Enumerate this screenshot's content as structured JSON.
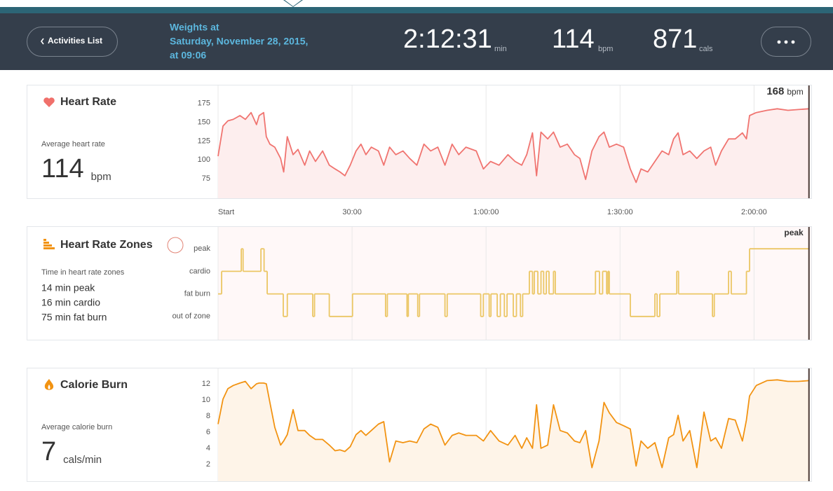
{
  "header": {
    "back_button": "Activities List",
    "title_lines": [
      "Weights at",
      "Saturday, November 28, 2015,",
      "at 09:06"
    ],
    "stats": [
      {
        "value": "2:12:31",
        "unit": "min"
      },
      {
        "value": 114,
        "unit": "bpm"
      },
      {
        "value": 871,
        "unit": "cals"
      }
    ]
  },
  "chart_data": [
    {
      "type": "area",
      "title": "Heart Rate",
      "summary_label": "Average heart rate",
      "summary_value": 114,
      "summary_unit": "bpm",
      "cursor_value": 168,
      "cursor_unit": "bpm",
      "color": "#f07470",
      "fill": "#fdeeee",
      "xlim": [
        0,
        132.5
      ],
      "ylim": [
        50,
        200
      ],
      "yticks": [
        75,
        100,
        125,
        150,
        175
      ],
      "xticks": [
        {
          "value": 0,
          "label": "Start"
        },
        {
          "value": 30,
          "label": "30:00"
        },
        {
          "value": 60,
          "label": "1:00:00"
        },
        {
          "value": 90,
          "label": "1:30:00"
        },
        {
          "value": 120,
          "label": "2:00:00"
        }
      ],
      "grid": true,
      "x": [
        0,
        1.1,
        2.2,
        3.4,
        4.9,
        6.1,
        7.4,
        8.6,
        9.2,
        10.2,
        10.8,
        11.6,
        12.7,
        14.0,
        14.7,
        15.5,
        16.8,
        17.9,
        19.4,
        20.5,
        21.8,
        23.4,
        24.9,
        26.2,
        27.3,
        28.4,
        29.6,
        30.9,
        32.0,
        33.1,
        34.3,
        35.9,
        37.1,
        38.4,
        39.8,
        41.4,
        42.9,
        44.5,
        46.1,
        47.6,
        49.2,
        50.8,
        52.4,
        53.9,
        55.5,
        57.8,
        59.4,
        61.0,
        62.9,
        64.9,
        66.5,
        68.0,
        69.1,
        70.4,
        71.3,
        72.3,
        73.8,
        75.1,
        76.6,
        78.2,
        79.8,
        81.0,
        82.3,
        83.7,
        85.3,
        86.4,
        87.6,
        89.2,
        90.8,
        92.3,
        93.6,
        94.7,
        96.2,
        97.8,
        99.4,
        100.9,
        102.0,
        103.0,
        104.1,
        105.6,
        107.2,
        108.8,
        110.3,
        111.4,
        112.7,
        114.3,
        115.8,
        117.4,
        118.3,
        119.0,
        120.5,
        122.9,
        125.2,
        127.6,
        129.9,
        132.3
      ],
      "values": [
        105,
        145,
        152,
        154,
        159,
        154,
        163,
        147,
        159,
        163,
        131,
        121,
        117,
        102,
        84,
        131,
        107,
        114,
        93,
        112,
        98,
        112,
        93,
        88,
        84,
        79,
        93,
        112,
        121,
        107,
        117,
        112,
        93,
        117,
        107,
        112,
        102,
        93,
        121,
        112,
        117,
        93,
        121,
        107,
        117,
        112,
        88,
        98,
        93,
        107,
        98,
        93,
        107,
        136,
        79,
        137,
        128,
        137,
        117,
        121,
        107,
        102,
        74,
        112,
        131,
        137,
        117,
        121,
        117,
        88,
        70,
        88,
        84,
        98,
        112,
        107,
        128,
        136,
        107,
        112,
        102,
        112,
        117,
        93,
        112,
        128,
        128,
        136,
        128,
        159,
        163,
        166,
        168,
        166,
        167,
        168
      ]
    },
    {
      "type": "step",
      "title": "Heart Rate Zones",
      "help_icon": "?",
      "summary_label": "Time in heart rate zones",
      "summary_lines": [
        "14 min peak",
        "16 min cardio",
        "75 min fat burn"
      ],
      "cursor_label": "peak",
      "color": "#ebc664",
      "fill": "#fff8f8",
      "xlim": [
        0,
        132.5
      ],
      "ylim": [
        -1,
        4
      ],
      "yticks": [
        {
          "value": 3,
          "label": "peak"
        },
        {
          "value": 2,
          "label": "cardio"
        },
        {
          "value": 1,
          "label": "fat burn"
        },
        {
          "value": 0,
          "label": "out of zone"
        }
      ],
      "x": [
        0,
        0.8,
        5.2,
        5.6,
        9.6,
        10.3,
        11.0,
        14.6,
        15.5,
        21.2,
        21.6,
        24.9,
        30.1,
        37.5,
        37.9,
        42.3,
        42.6,
        44.7,
        45.1,
        50.8,
        51.3,
        58.8,
        59.4,
        60.7,
        61.1,
        62.5,
        63.2,
        64.1,
        64.7,
        66.1,
        66.8,
        67.7,
        68.2,
        69.7,
        70.4,
        70.8,
        71.6,
        72.3,
        72.9,
        73.5,
        74.1,
        75.1,
        75.5,
        84.5,
        85.4,
        86.1,
        87.0,
        87.3,
        87.6,
        92.3,
        97.8,
        98.3,
        98.9,
        102.7,
        103.1,
        110.7,
        111.1,
        114.3,
        114.9,
        118.3,
        119.0,
        132.3
      ],
      "values": [
        1,
        2,
        3,
        2,
        3,
        2,
        1,
        0,
        1,
        0,
        1,
        0,
        1,
        0,
        1,
        0,
        1,
        0,
        1,
        0,
        1,
        0,
        1,
        0,
        1,
        0,
        1,
        0,
        1,
        0,
        1,
        0,
        1,
        2,
        1,
        2,
        1,
        2,
        1,
        2,
        1,
        2,
        1,
        2,
        1,
        2,
        1,
        2,
        1,
        0,
        1,
        0,
        1,
        2,
        1,
        0,
        1,
        2,
        1,
        2,
        3,
        3
      ]
    },
    {
      "type": "area",
      "title": "Calorie Burn",
      "summary_label": "Average calorie burn",
      "summary_value": 7,
      "summary_unit": "cals/min",
      "color": "#f29312",
      "fill": "#fef4e8",
      "xlim": [
        0,
        132.5
      ],
      "ylim": [
        0,
        14
      ],
      "yticks": [
        2,
        4,
        6,
        8,
        10,
        12
      ],
      "x": [
        0,
        1.1,
        2.2,
        3.4,
        4.9,
        6.1,
        7.4,
        8.6,
        9.2,
        10.2,
        10.8,
        11.6,
        12.7,
        14.0,
        14.7,
        15.5,
        16.8,
        17.9,
        19.4,
        20.5,
        21.8,
        23.4,
        24.9,
        26.2,
        27.3,
        28.4,
        29.6,
        30.9,
        32.0,
        33.1,
        34.3,
        35.9,
        37.1,
        38.4,
        39.8,
        41.4,
        42.9,
        44.5,
        46.1,
        47.6,
        49.2,
        50.8,
        52.4,
        53.9,
        55.5,
        57.8,
        59.4,
        61.0,
        62.9,
        64.9,
        66.5,
        68.0,
        69.1,
        70.4,
        71.3,
        72.3,
        73.8,
        75.1,
        76.6,
        78.2,
        79.8,
        81.0,
        82.3,
        83.7,
        85.3,
        86.4,
        87.6,
        89.2,
        90.8,
        92.3,
        93.6,
        94.7,
        96.2,
        97.8,
        99.4,
        100.9,
        102.0,
        103.0,
        104.1,
        105.6,
        107.2,
        108.8,
        110.3,
        111.4,
        112.7,
        114.3,
        115.8,
        117.4,
        118.3,
        119.0,
        120.5,
        122.9,
        125.2,
        127.6,
        129.9,
        132.3
      ],
      "values": [
        7.0,
        10.1,
        11.4,
        11.8,
        12.1,
        12.3,
        11.4,
        12.0,
        12.1,
        12.1,
        12.0,
        9.7,
        6.6,
        4.4,
        4.9,
        5.7,
        8.8,
        6.2,
        6.2,
        5.6,
        5.1,
        5.1,
        4.4,
        3.7,
        3.8,
        3.6,
        4.2,
        5.7,
        6.2,
        5.6,
        6.2,
        7.0,
        7.3,
        2.3,
        4.9,
        4.7,
        4.9,
        4.7,
        6.4,
        7.0,
        6.6,
        4.4,
        5.6,
        5.9,
        5.6,
        5.6,
        4.9,
        6.2,
        4.9,
        4.4,
        5.6,
        4.0,
        5.3,
        4.0,
        9.4,
        4.0,
        4.4,
        9.4,
        6.2,
        5.9,
        4.9,
        4.7,
        6.2,
        1.6,
        4.9,
        9.7,
        8.4,
        7.2,
        6.8,
        6.4,
        1.8,
        4.9,
        4.0,
        4.7,
        1.6,
        5.3,
        5.7,
        8.1,
        4.9,
        6.2,
        1.6,
        8.5,
        4.9,
        5.3,
        4.0,
        7.7,
        7.5,
        4.9,
        7.5,
        10.5,
        11.8,
        12.4,
        12.5,
        12.3,
        12.3,
        12.4
      ]
    }
  ]
}
